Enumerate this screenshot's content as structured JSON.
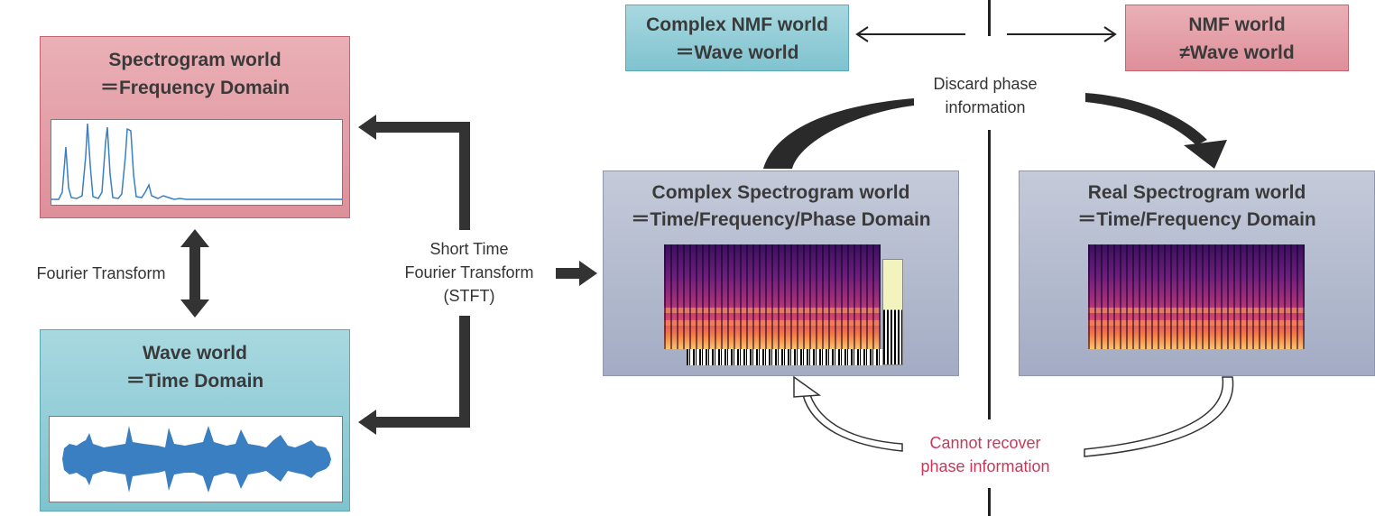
{
  "spectrogram_world": {
    "line1": "Spectrogram world",
    "line2": "＝Frequency Domain"
  },
  "wave_world": {
    "line1": "Wave world",
    "line2": "＝Time Domain"
  },
  "fourier_label": "Fourier Transform",
  "stft_label": {
    "line1": "Short Time",
    "line2": "Fourier Transform",
    "line3": "(STFT)"
  },
  "complex_spec": {
    "line1": "Complex Spectrogram world",
    "line2": "＝Time/Frequency/Phase Domain"
  },
  "real_spec": {
    "line1": "Real Spectrogram world",
    "line2": "＝Time/Frequency Domain"
  },
  "complex_nmf": {
    "line1": "Complex NMF world",
    "line2": "＝Wave world"
  },
  "nmf": {
    "line1": "NMF world",
    "line2": "≠Wave world"
  },
  "discard_label": {
    "line1": "Discard phase",
    "line2": "information"
  },
  "cannot_label": {
    "line1": "Cannot recover",
    "line2": "phase information"
  },
  "colors": {
    "pink": "#de8f9a",
    "teal": "#7fc3cf",
    "gray": "#a3acc4",
    "warning_text": "#c8385a",
    "arrow": "#333333",
    "plot_line": "#3a7fc1"
  }
}
